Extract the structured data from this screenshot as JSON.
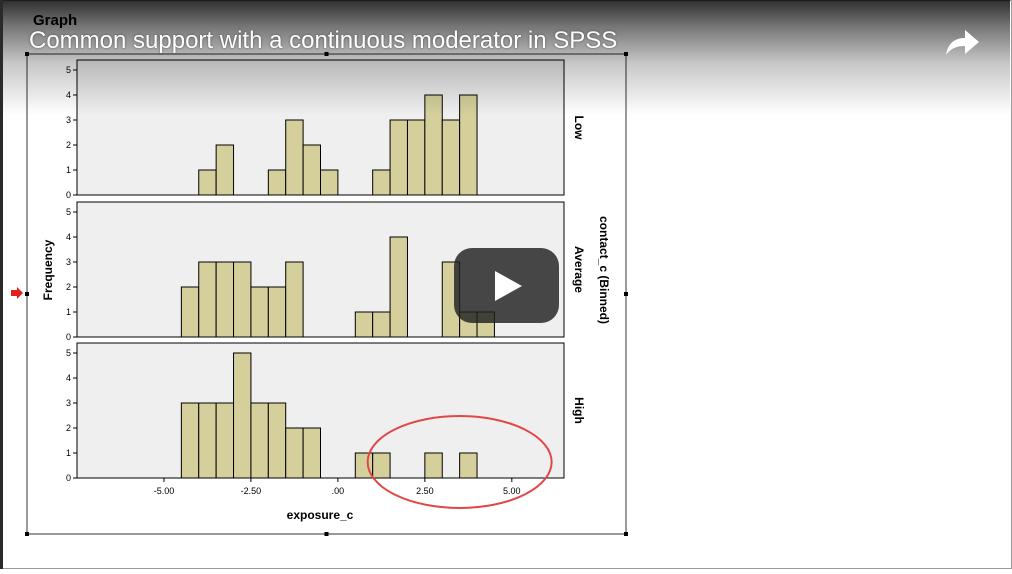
{
  "header": {
    "graph_label": "Graph",
    "video_title": "Common support with a continuous moderator in SPSS"
  },
  "icons": {
    "share": "share-arrow-icon",
    "play": "play-icon",
    "marker": "red-arrow-icon"
  },
  "colors": {
    "bar_fill": "#d4cf9b",
    "bar_stroke": "#000000",
    "panel_bg": "#efefef",
    "circle": "#e04848",
    "marker": "#e0201a"
  },
  "chart_data": {
    "type": "bar",
    "subtype": "histogram-panel",
    "xlabel": "exposure_c",
    "ylabel": "Frequency",
    "facet_label": "contact_c (Binned)",
    "xlim": [
      -7.5,
      6.5
    ],
    "ylim": [
      0,
      5
    ],
    "bin_width": 0.5,
    "x_ticks": [
      -5.0,
      -2.5,
      0.0,
      2.5,
      5.0
    ],
    "x_tick_labels": [
      "-5.00",
      "-2.50",
      ".00",
      "2.50",
      "5.00"
    ],
    "y_ticks": [
      0,
      1,
      2,
      3,
      4,
      5
    ],
    "y_tick_labels": [
      "0",
      "1",
      "2",
      "3",
      "4",
      "5"
    ],
    "annotation": "circle highlighting High-panel bars from 1.75 to 5.25",
    "panels": [
      {
        "name": "Low",
        "bins": [
          {
            "x": -3.75,
            "count": 1
          },
          {
            "x": -3.25,
            "count": 2
          },
          {
            "x": -1.75,
            "count": 1
          },
          {
            "x": -1.25,
            "count": 3
          },
          {
            "x": -0.75,
            "count": 2
          },
          {
            "x": -0.25,
            "count": 1
          },
          {
            "x": 1.25,
            "count": 1
          },
          {
            "x": 1.75,
            "count": 3
          },
          {
            "x": 2.25,
            "count": 3
          },
          {
            "x": 2.75,
            "count": 4
          },
          {
            "x": 3.25,
            "count": 3
          },
          {
            "x": 3.75,
            "count": 4
          }
        ]
      },
      {
        "name": "Average",
        "bins": [
          {
            "x": -4.25,
            "count": 2
          },
          {
            "x": -3.75,
            "count": 3
          },
          {
            "x": -3.25,
            "count": 3
          },
          {
            "x": -2.75,
            "count": 3
          },
          {
            "x": -2.25,
            "count": 2
          },
          {
            "x": -1.75,
            "count": 2
          },
          {
            "x": -1.25,
            "count": 3
          },
          {
            "x": 0.75,
            "count": 1
          },
          {
            "x": 1.25,
            "count": 1
          },
          {
            "x": 1.75,
            "count": 4
          },
          {
            "x": 3.25,
            "count": 3
          },
          {
            "x": 3.75,
            "count": 1
          },
          {
            "x": 4.25,
            "count": 1
          }
        ]
      },
      {
        "name": "High",
        "bins": [
          {
            "x": -4.25,
            "count": 3
          },
          {
            "x": -3.75,
            "count": 3
          },
          {
            "x": -3.25,
            "count": 3
          },
          {
            "x": -2.75,
            "count": 5
          },
          {
            "x": -2.25,
            "count": 3
          },
          {
            "x": -1.75,
            "count": 3
          },
          {
            "x": -1.25,
            "count": 2
          },
          {
            "x": -0.75,
            "count": 2
          },
          {
            "x": 0.75,
            "count": 1
          },
          {
            "x": 1.25,
            "count": 1
          },
          {
            "x": 2.75,
            "count": 1
          },
          {
            "x": 3.75,
            "count": 1
          }
        ]
      }
    ]
  }
}
